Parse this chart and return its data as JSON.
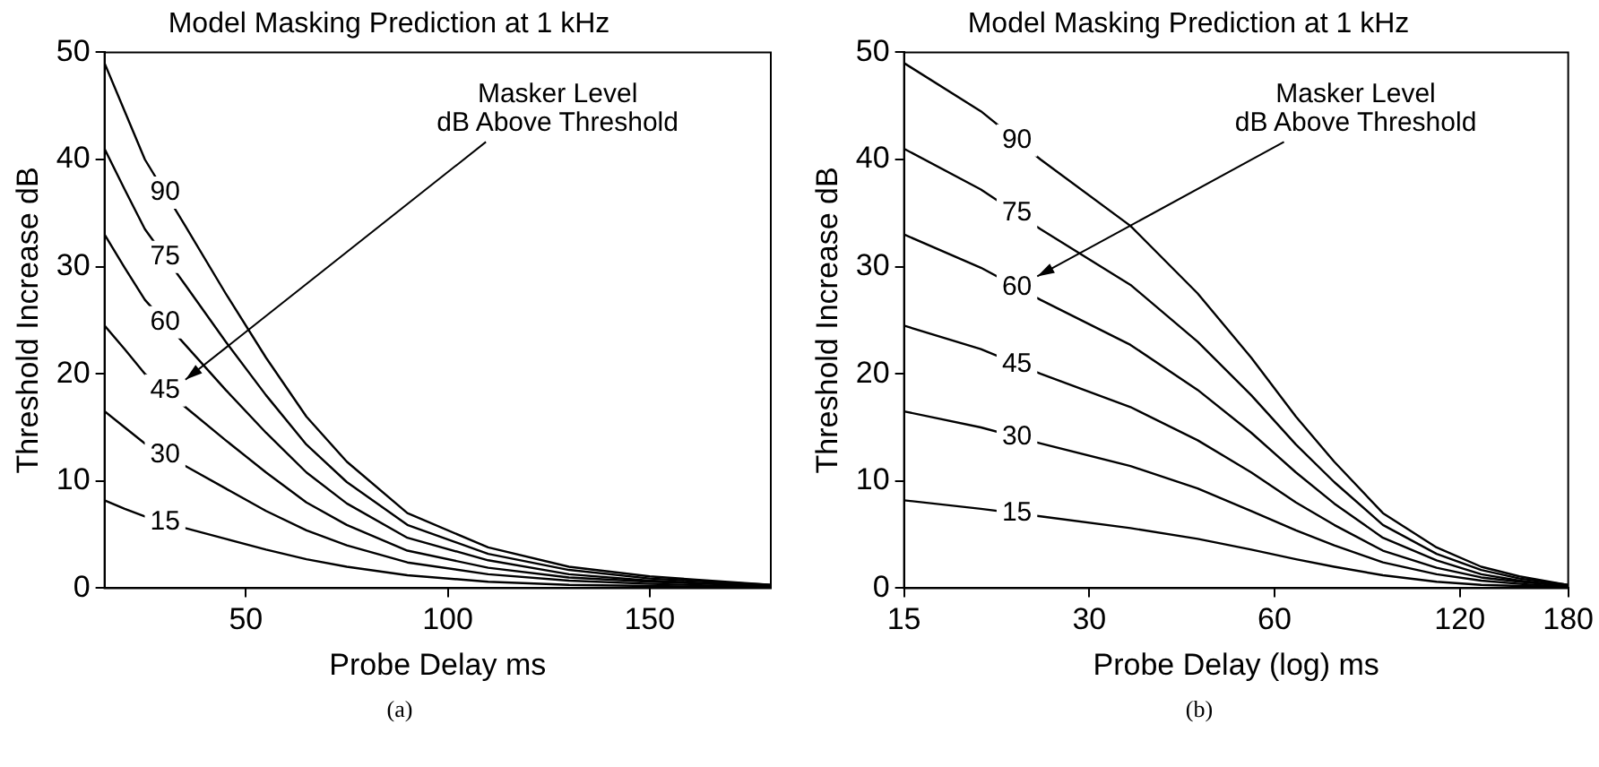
{
  "chart_data": [
    {
      "type": "line",
      "title": "Model Masking Prediction at 1 kHz",
      "xlabel": "Probe Delay ms",
      "ylabel": "Threshold Increase dB",
      "x": [
        15,
        20,
        25,
        35,
        45,
        55,
        65,
        75,
        90,
        110,
        130,
        150,
        180
      ],
      "xlim": [
        15,
        180
      ],
      "xticks": [
        50,
        100,
        150
      ],
      "ylim": [
        0,
        50
      ],
      "yticks": [
        0,
        10,
        20,
        30,
        40,
        50
      ],
      "grid": false,
      "marker": "none",
      "line_style": "solid",
      "series": [
        {
          "name": "90",
          "color": "#000000",
          "values": [
            49,
            44.5,
            40,
            33.8,
            27.5,
            21.5,
            16,
            11.8,
            7,
            3.8,
            2,
            1.1,
            0.3
          ]
        },
        {
          "name": "75",
          "color": "#000000",
          "values": [
            41,
            37.2,
            33.5,
            28.3,
            23,
            18,
            13.4,
            9.9,
            5.9,
            3.2,
            1.7,
            0.9,
            0.3
          ]
        },
        {
          "name": "60",
          "color": "#000000",
          "values": [
            33,
            29.9,
            26.9,
            22.7,
            18.5,
            14.5,
            10.8,
            7.9,
            4.7,
            2.6,
            1.3,
            0.7,
            0.2
          ]
        },
        {
          "name": "45",
          "color": "#000000",
          "values": [
            24.5,
            22.3,
            20,
            16.9,
            13.8,
            10.8,
            8,
            5.9,
            3.5,
            1.9,
            1,
            0.6,
            0.2
          ]
        },
        {
          "name": "30",
          "color": "#000000",
          "values": [
            16.5,
            15,
            13.5,
            11.4,
            9.3,
            7.2,
            5.4,
            4,
            2.4,
            1.3,
            0.7,
            0.4,
            0.1
          ]
        },
        {
          "name": "15",
          "color": "#000000",
          "values": [
            8.2,
            7.4,
            6.7,
            5.6,
            4.6,
            3.6,
            2.7,
            2,
            1.2,
            0.6,
            0.3,
            0.2,
            0.1
          ]
        }
      ],
      "annotations": [
        "Masker Level\ndB Above Threshold",
        "(a)"
      ]
    },
    {
      "type": "line",
      "title": "Model Masking Prediction at 1 kHz",
      "xlabel": "Probe Delay (log) ms",
      "ylabel": "Threshold Increase dB",
      "log": "x",
      "x": [
        15,
        20,
        25,
        35,
        45,
        55,
        65,
        75,
        90,
        110,
        130,
        150,
        180
      ],
      "xlim": [
        15,
        180
      ],
      "xticks": [
        15,
        30,
        60,
        120,
        180
      ],
      "ylim": [
        0,
        50
      ],
      "yticks": [
        0,
        10,
        20,
        30,
        40,
        50
      ],
      "grid": false,
      "marker": "none",
      "line_style": "solid",
      "series": [
        {
          "name": "90",
          "color": "#000000",
          "values": [
            49,
            44.5,
            40,
            33.8,
            27.5,
            21.5,
            16,
            11.8,
            7,
            3.8,
            2,
            1.1,
            0.3
          ]
        },
        {
          "name": "75",
          "color": "#000000",
          "values": [
            41,
            37.2,
            33.5,
            28.3,
            23,
            18,
            13.4,
            9.9,
            5.9,
            3.2,
            1.7,
            0.9,
            0.3
          ]
        },
        {
          "name": "60",
          "color": "#000000",
          "values": [
            33,
            29.9,
            26.9,
            22.7,
            18.5,
            14.5,
            10.8,
            7.9,
            4.7,
            2.6,
            1.3,
            0.7,
            0.2
          ]
        },
        {
          "name": "45",
          "color": "#000000",
          "values": [
            24.5,
            22.3,
            20,
            16.9,
            13.8,
            10.8,
            8,
            5.9,
            3.5,
            1.9,
            1,
            0.6,
            0.2
          ]
        },
        {
          "name": "30",
          "color": "#000000",
          "values": [
            16.5,
            15,
            13.5,
            11.4,
            9.3,
            7.2,
            5.4,
            4,
            2.4,
            1.3,
            0.7,
            0.4,
            0.1
          ]
        },
        {
          "name": "15",
          "color": "#000000",
          "values": [
            8.2,
            7.4,
            6.7,
            5.6,
            4.6,
            3.6,
            2.7,
            2,
            1.2,
            0.6,
            0.3,
            0.2,
            0.1
          ]
        }
      ],
      "annotations": [
        "Masker Level\ndB Above Threshold",
        "(b)"
      ]
    }
  ]
}
